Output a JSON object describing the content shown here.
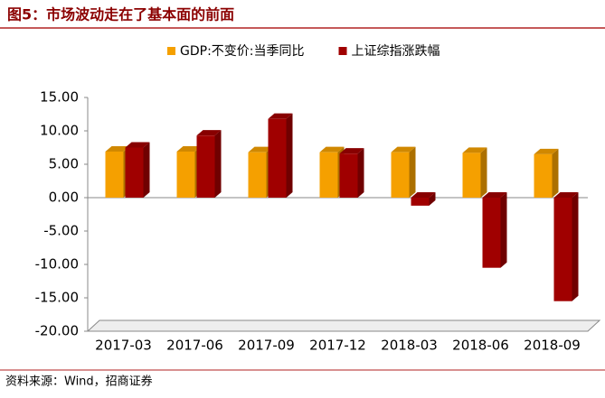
{
  "chart_data": {
    "type": "bar",
    "title": "图5：市场波动走在了基本面的前面",
    "source": "资料来源：Wind，招商证券",
    "categories": [
      "2017-03",
      "2017-06",
      "2017-09",
      "2017-12",
      "2018-03",
      "2018-06",
      "2018-09"
    ],
    "series": [
      {
        "name": "GDP:不变价:当季同比",
        "color": "#F5A000",
        "values": [
          6.9,
          6.9,
          6.8,
          6.8,
          6.8,
          6.7,
          6.5
        ]
      },
      {
        "name": "上证综指涨跌幅",
        "color": "#A00000",
        "values": [
          7.5,
          9.3,
          11.8,
          6.6,
          -1.2,
          -10.5,
          -15.5
        ]
      }
    ],
    "ylim": [
      -20,
      15
    ],
    "yticks": [
      {
        "value": -20,
        "label": "-20.00"
      },
      {
        "value": -15,
        "label": "-15.00"
      },
      {
        "value": -10,
        "label": "-10.00"
      },
      {
        "value": -5,
        "label": "-5.00"
      },
      {
        "value": 0,
        "label": "0.00"
      },
      {
        "value": 5,
        "label": "5.00"
      },
      {
        "value": 10,
        "label": "10.00"
      },
      {
        "value": 15,
        "label": "15.00"
      }
    ],
    "legend": "top"
  }
}
